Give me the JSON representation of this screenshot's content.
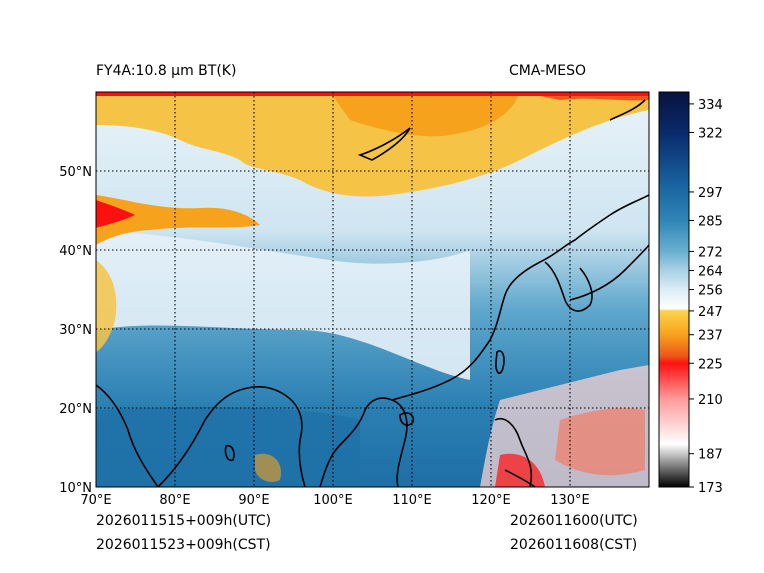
{
  "header": {
    "title_left": "FY4A:10.8 μm BT(K)",
    "title_right": "CMA-MESO"
  },
  "map": {
    "lat_labels": [
      "50°N",
      "40°N",
      "30°N",
      "20°N",
      "10°N"
    ],
    "lon_labels": [
      "70°E",
      "80°E",
      "90°E",
      "100°E",
      "110°E",
      "120°E",
      "130°E"
    ],
    "lat_values": [
      50,
      40,
      30,
      20,
      10
    ],
    "lon_values": [
      70,
      80,
      90,
      100,
      110,
      120,
      130
    ],
    "lat_range": [
      10,
      60
    ],
    "lon_range": [
      70,
      140
    ],
    "grid_line_style": "dotted"
  },
  "colorbar": {
    "tick_labels": [
      "334",
      "322",
      "297",
      "285",
      "272",
      "264",
      "256",
      "247",
      "237",
      "225",
      "210",
      "187",
      "173"
    ],
    "tick_values": [
      334,
      322,
      297,
      285,
      272,
      264,
      256,
      247,
      237,
      225,
      210,
      187,
      173
    ],
    "range": [
      173,
      339
    ],
    "stops": [
      {
        "value": 339,
        "color": "#08123f"
      },
      {
        "value": 322,
        "color": "#0a2a6a"
      },
      {
        "value": 300,
        "color": "#1863a0"
      },
      {
        "value": 285,
        "color": "#2f86b6"
      },
      {
        "value": 272,
        "color": "#6aafd0"
      },
      {
        "value": 264,
        "color": "#a9d1e6"
      },
      {
        "value": 256,
        "color": "#dcecf5"
      },
      {
        "value": 248,
        "color": "#ffffff"
      },
      {
        "value": 247,
        "color": "#fdd34a"
      },
      {
        "value": 237,
        "color": "#f7a21c"
      },
      {
        "value": 228,
        "color": "#f0561a"
      },
      {
        "value": 225,
        "color": "#ff1010"
      },
      {
        "value": 210,
        "color": "#ff9a9a"
      },
      {
        "value": 191,
        "color": "#ffffff"
      },
      {
        "value": 187,
        "color": "#c8c8c8"
      },
      {
        "value": 173,
        "color": "#000000"
      }
    ]
  },
  "footer": {
    "left_utc": "2026011515+009h(UTC)",
    "left_cst": "2026011523+009h(CST)",
    "right_utc": "2026011600(UTC)",
    "right_cst": "2026011608(CST)"
  }
}
